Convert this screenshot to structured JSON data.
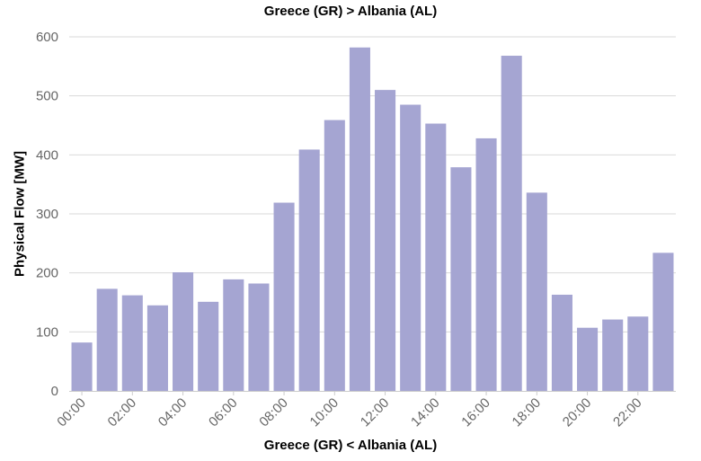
{
  "chart_data": {
    "type": "bar",
    "title": "Greece (GR) > Albania (AL)",
    "xlabel": "Greece (GR) < Albania (AL)",
    "ylabel": "Physical Flow [MW]",
    "ylim": [
      0,
      600
    ],
    "yticks": [
      0,
      100,
      200,
      300,
      400,
      500,
      600
    ],
    "grid": true,
    "categories": [
      "00:00",
      "01:00",
      "02:00",
      "03:00",
      "04:00",
      "05:00",
      "06:00",
      "07:00",
      "08:00",
      "09:00",
      "10:00",
      "11:00",
      "12:00",
      "13:00",
      "14:00",
      "15:00",
      "16:00",
      "17:00",
      "18:00",
      "19:00",
      "20:00",
      "21:00",
      "22:00",
      "23:00"
    ],
    "xtick_labels": [
      "00:00",
      "02:00",
      "04:00",
      "06:00",
      "08:00",
      "10:00",
      "12:00",
      "14:00",
      "16:00",
      "18:00",
      "20:00",
      "22:00"
    ],
    "values": [
      82,
      173,
      162,
      145,
      201,
      151,
      189,
      182,
      319,
      409,
      459,
      582,
      510,
      485,
      453,
      379,
      428,
      568,
      336,
      163,
      107,
      121,
      126,
      234
    ],
    "bar_color": "#a5a5d2"
  }
}
